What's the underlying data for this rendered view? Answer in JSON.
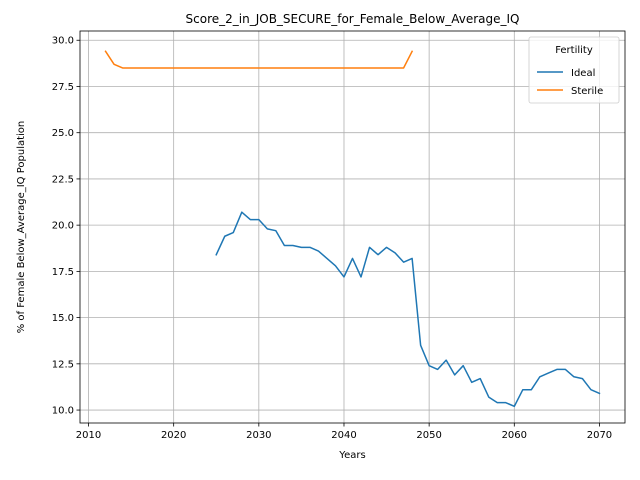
{
  "chart_data": {
    "type": "line",
    "title": "Score_2_in_JOB_SECURE_for_Female_Below_Average_IQ",
    "xlabel": "Years",
    "ylabel": "% of Female Below_Average_IQ Population",
    "xlim": [
      2009,
      2073
    ],
    "ylim": [
      9.3,
      30.5
    ],
    "xticks": [
      2010,
      2020,
      2030,
      2040,
      2050,
      2060,
      2070
    ],
    "yticks": [
      10.0,
      12.5,
      15.0,
      17.5,
      20.0,
      22.5,
      25.0,
      27.5,
      30.0
    ],
    "xtick_labels": [
      "2010",
      "2020",
      "2030",
      "2040",
      "2050",
      "2060",
      "2070"
    ],
    "ytick_labels": [
      "10.0",
      "12.5",
      "15.0",
      "17.5",
      "20.0",
      "22.5",
      "25.0",
      "27.5",
      "30.0"
    ],
    "grid": true,
    "legend": {
      "title": "Fertility",
      "position": "top-right"
    },
    "series": [
      {
        "name": "Ideal",
        "color": "#1f77b4",
        "x": [
          2025,
          2026,
          2027,
          2028,
          2029,
          2030,
          2031,
          2032,
          2033,
          2034,
          2035,
          2036,
          2037,
          2038,
          2039,
          2040,
          2041,
          2042,
          2043,
          2044,
          2045,
          2046,
          2047,
          2048,
          2049,
          2050,
          2051,
          2052,
          2053,
          2054,
          2055,
          2056,
          2057,
          2058,
          2059,
          2060,
          2061,
          2062,
          2063,
          2064,
          2065,
          2066,
          2067,
          2068,
          2069,
          2070
        ],
        "values": [
          18.4,
          19.4,
          19.6,
          20.7,
          20.3,
          20.3,
          19.8,
          19.7,
          18.9,
          18.9,
          18.8,
          18.8,
          18.6,
          18.2,
          17.8,
          17.2,
          18.2,
          17.2,
          18.8,
          18.4,
          18.8,
          18.5,
          18.0,
          18.2,
          13.5,
          12.4,
          12.2,
          12.7,
          11.9,
          12.4,
          11.5,
          11.7,
          10.7,
          10.4,
          10.4,
          10.2,
          11.1,
          11.1,
          11.8,
          12.0,
          12.2,
          12.2,
          11.8,
          11.7,
          11.1,
          10.9
        ]
      },
      {
        "name": "Sterile",
        "color": "#ff7f0e",
        "x": [
          2012,
          2013,
          2014,
          2015,
          2016,
          2017,
          2018,
          2019,
          2020,
          2021,
          2022,
          2023,
          2024,
          2025,
          2026,
          2027,
          2028,
          2029,
          2030,
          2031,
          2032,
          2033,
          2034,
          2035,
          2036,
          2037,
          2038,
          2039,
          2040,
          2041,
          2042,
          2043,
          2044,
          2045,
          2046,
          2047,
          2048
        ],
        "values": [
          29.4,
          28.7,
          28.5,
          28.5,
          28.5,
          28.5,
          28.5,
          28.5,
          28.5,
          28.5,
          28.5,
          28.5,
          28.5,
          28.5,
          28.5,
          28.5,
          28.5,
          28.5,
          28.5,
          28.5,
          28.5,
          28.5,
          28.5,
          28.5,
          28.5,
          28.5,
          28.5,
          28.5,
          28.5,
          28.5,
          28.5,
          28.5,
          28.5,
          28.5,
          28.5,
          28.5,
          29.4
        ]
      }
    ]
  }
}
